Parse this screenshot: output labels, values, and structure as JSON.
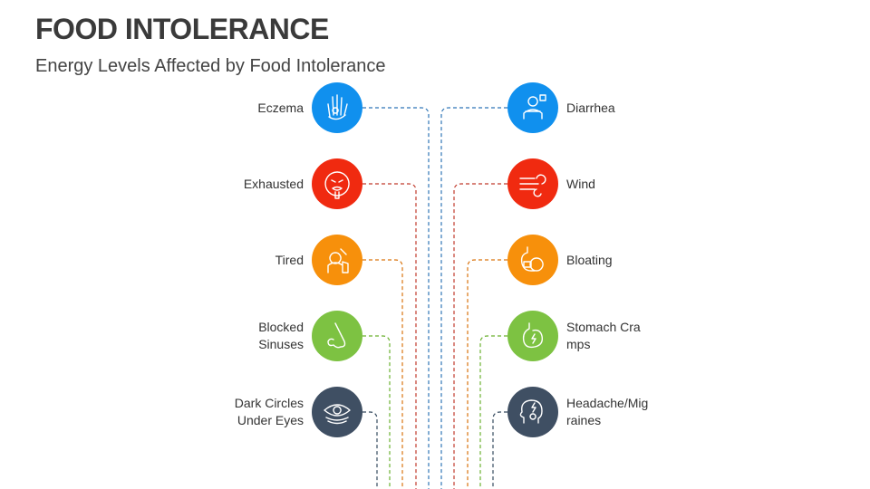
{
  "header": {
    "title": "FOOD INTOLERANCE",
    "subtitle": "Energy Levels Affected by Food Intolerance"
  },
  "left_items": [
    {
      "label": "Eczema",
      "icon": "hand-rash-icon",
      "color": "#1090EE",
      "line_color": "#2E75B6"
    },
    {
      "label": "Exhausted",
      "icon": "exhausted-face-icon",
      "color": "#F02A10",
      "line_color": "#C0392B"
    },
    {
      "label": "Tired",
      "icon": "tired-person-icon",
      "color": "#F7900B",
      "line_color": "#D9730D"
    },
    {
      "label": "Blocked Sinuses",
      "icon": "nose-icon",
      "color": "#7DC242",
      "line_color": "#6AB02F"
    },
    {
      "label": "Dark Circles Under Eyes",
      "icon": "eye-icon",
      "color": "#3F4F63",
      "line_color": "#34495E"
    }
  ],
  "right_items": [
    {
      "label": "Diarrhea",
      "icon": "person-stomach-icon",
      "color": "#1090EE",
      "line_color": "#2E75B6"
    },
    {
      "label": "Wind",
      "icon": "wind-icon",
      "color": "#F02A10",
      "line_color": "#C0392B"
    },
    {
      "label": "Bloating",
      "icon": "bloated-stomach-icon",
      "color": "#F7900B",
      "line_color": "#D9730D"
    },
    {
      "label": "Stomach Cramps",
      "icon": "stomach-icon",
      "color": "#7DC242",
      "line_color": "#6AB02F"
    },
    {
      "label": "Headache/Migraines",
      "icon": "headache-icon",
      "color": "#3F4F63",
      "line_color": "#34495E"
    }
  ]
}
